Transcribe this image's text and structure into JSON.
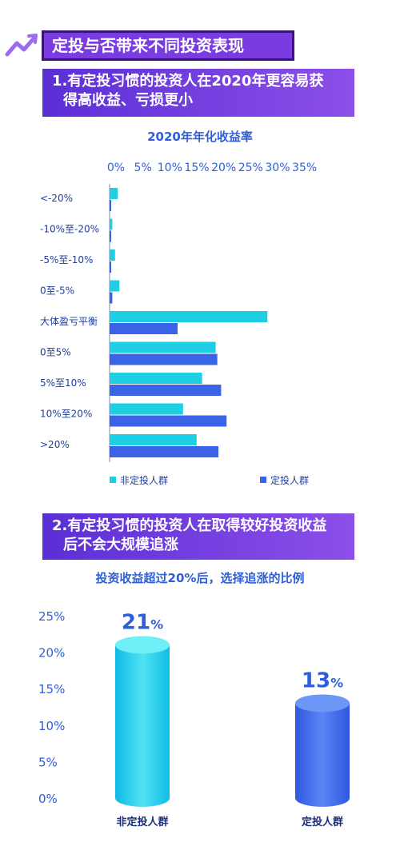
{
  "header": {
    "title": "定投与否带来不同投资表现"
  },
  "section1": {
    "title_line1": "1.有定投习惯的投资人在2020年更容易获",
    "title_line2": "得高收益、亏损更小"
  },
  "section2": {
    "title_line1": "2.有定投习惯的投资人在取得较好投资收益",
    "title_line2": "后不会大规模追涨"
  },
  "colors": {
    "non_fixed": "#1ecfe4",
    "fixed": "#3a63e8",
    "accent": "#7a3be0"
  },
  "chart_data": [
    {
      "type": "bar",
      "orientation": "horizontal",
      "title": "2020年年化收益率",
      "categories": [
        "<-20%",
        "-10%至-20%",
        "-5%至-10%",
        "0至-5%",
        "大体盈亏平衡",
        "0至5%",
        "5%至10%",
        "10%至20%",
        ">20%"
      ],
      "x_ticks": [
        "0%",
        "5%",
        "10%",
        "15%",
        "20%",
        "25%",
        "30%",
        "35%"
      ],
      "xlim": [
        0,
        35
      ],
      "legend_position": "bottom",
      "series": [
        {
          "name": "非定投人群",
          "values": [
            1.5,
            0.5,
            1.0,
            1.8,
            29.0,
            19.5,
            17.0,
            13.5,
            16.0
          ]
        },
        {
          "name": "定投人群",
          "values": [
            0.2,
            0.1,
            0.2,
            0.5,
            12.5,
            19.8,
            20.5,
            21.5,
            20.0
          ]
        }
      ]
    },
    {
      "type": "bar",
      "title": "投资收益超过20%后，选择追涨的比例",
      "categories": [
        "非定投人群",
        "定投人群"
      ],
      "values": [
        21,
        13
      ],
      "value_labels": [
        "21",
        "13"
      ],
      "value_unit": "%",
      "y_ticks": [
        "25%",
        "20%",
        "15%",
        "10%",
        "5%",
        "0%"
      ],
      "ylim": [
        0,
        25
      ]
    }
  ]
}
